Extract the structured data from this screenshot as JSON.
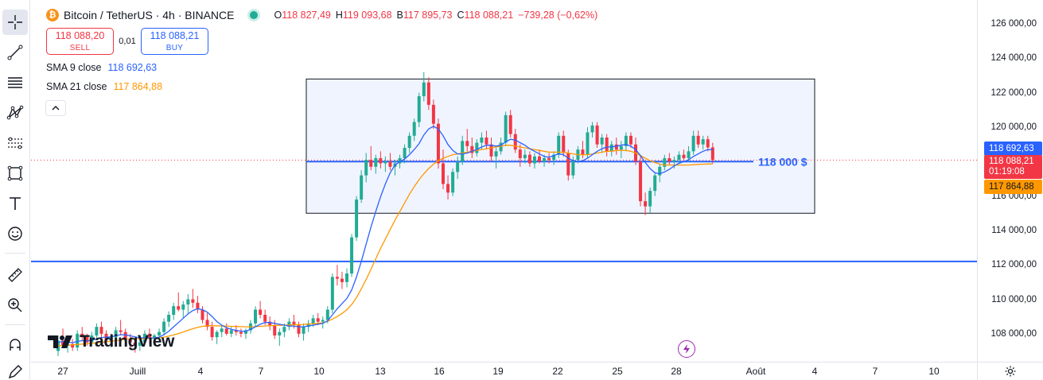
{
  "legend": {
    "symbol": "Bitcoin / TetherUS · 4h · BINANCE",
    "open_label": "O",
    "open": "118 827,49",
    "high_label": "H",
    "high": "119 093,68",
    "low_label": "B",
    "low": "117 895,73",
    "close_label": "C",
    "close": "118 088,21",
    "change": "−739,28 (−0,62%)"
  },
  "trade": {
    "sell_price": "118 088,20",
    "sell_label": "SELL",
    "spread": "0,01",
    "buy_price": "118 088,21",
    "buy_label": "BUY"
  },
  "indicators": {
    "sma9_label": "SMA 9 close",
    "sma9_value": "118 692,63",
    "sma21_label": "SMA 21 close",
    "sma21_value": "117 864,88"
  },
  "price_axis": {
    "ticks": [
      "126 000,00",
      "124 000,00",
      "122 000,00",
      "120 000,00",
      "118 000,00",
      "116 000,00",
      "114 000,00",
      "112 000,00",
      "110 000,00",
      "108 000,00"
    ],
    "sma9_tag": "118 692,63",
    "last_price_tag": "118 088,21",
    "countdown": "01:19:08",
    "sma21_tag": "117 864,88"
  },
  "time_axis": {
    "ticks": [
      "27",
      "Juill",
      "4",
      "7",
      "10",
      "13",
      "16",
      "19",
      "22",
      "25",
      "28",
      "Août",
      "4",
      "7",
      "10"
    ]
  },
  "annotations": {
    "level_label": "118 000 $"
  },
  "branding": {
    "logo_text": "TradingView"
  },
  "colors": {
    "up": "#22ab94",
    "down": "#f23645",
    "sma9": "#2962ff",
    "sma21": "#ff9800",
    "accent": "#2962ff"
  },
  "chart_data": {
    "type": "candlestick",
    "symbol": "BTCUSDT",
    "interval": "4h",
    "ylim": [
      106500,
      127000
    ],
    "candles": [
      [
        107000,
        107900,
        106700,
        107600
      ],
      [
        107600,
        108300,
        107200,
        107300
      ],
      [
        107300,
        107600,
        106900,
        107400
      ],
      [
        107400,
        107700,
        107000,
        107200
      ],
      [
        107200,
        108200,
        107000,
        108000
      ],
      [
        108000,
        108400,
        107600,
        107800
      ],
      [
        107800,
        108000,
        107300,
        107500
      ],
      [
        107500,
        108100,
        107300,
        107900
      ],
      [
        107900,
        108600,
        107700,
        108400
      ],
      [
        108400,
        108700,
        107800,
        108000
      ],
      [
        108000,
        108200,
        107400,
        107600
      ],
      [
        107600,
        108000,
        107200,
        107800
      ],
      [
        107800,
        108400,
        107600,
        108200
      ],
      [
        108200,
        108800,
        107900,
        108100
      ],
      [
        108100,
        108300,
        107500,
        107700
      ],
      [
        107700,
        108000,
        107200,
        107500
      ],
      [
        107500,
        107800,
        106900,
        107300
      ],
      [
        107300,
        107700,
        107000,
        107500
      ],
      [
        107500,
        108200,
        107300,
        108000
      ],
      [
        108000,
        108300,
        107400,
        107700
      ],
      [
        107700,
        108000,
        107300,
        107900
      ],
      [
        107900,
        108300,
        107600,
        108100
      ],
      [
        108100,
        108900,
        107900,
        108700
      ],
      [
        108700,
        109300,
        108400,
        109100
      ],
      [
        109100,
        109800,
        108800,
        109600
      ],
      [
        109600,
        110400,
        109300,
        109400
      ],
      [
        109400,
        109900,
        108900,
        109700
      ],
      [
        109700,
        110300,
        109200,
        110000
      ],
      [
        110000,
        110600,
        109500,
        109800
      ],
      [
        109800,
        110200,
        109200,
        109400
      ],
      [
        109400,
        109600,
        108600,
        108800
      ],
      [
        108800,
        109200,
        108200,
        108400
      ],
      [
        108400,
        108700,
        107600,
        107800
      ],
      [
        107800,
        108200,
        107400,
        108100
      ],
      [
        108100,
        108500,
        107800,
        108300
      ],
      [
        108300,
        108600,
        107900,
        108000
      ],
      [
        108000,
        108400,
        107800,
        108200
      ],
      [
        108200,
        108500,
        107900,
        108100
      ],
      [
        108100,
        108300,
        107800,
        108000
      ],
      [
        108000,
        108300,
        107700,
        108200
      ],
      [
        108200,
        108800,
        108000,
        108600
      ],
      [
        108600,
        109600,
        108400,
        109400
      ],
      [
        109400,
        109900,
        108900,
        109100
      ],
      [
        109100,
        109400,
        108500,
        108700
      ],
      [
        108700,
        109000,
        108200,
        108500
      ],
      [
        108500,
        108800,
        107700,
        107900
      ],
      [
        107900,
        108300,
        107300,
        108100
      ],
      [
        108100,
        108600,
        107800,
        108400
      ],
      [
        108400,
        108900,
        108200,
        108700
      ],
      [
        108700,
        109100,
        108300,
        108500
      ],
      [
        108500,
        108700,
        107800,
        108000
      ],
      [
        108000,
        108600,
        107600,
        108400
      ],
      [
        108400,
        108800,
        108100,
        108600
      ],
      [
        108600,
        109100,
        108400,
        108900
      ],
      [
        108900,
        109200,
        108500,
        108700
      ],
      [
        108700,
        109000,
        108300,
        108800
      ],
      [
        108800,
        109600,
        108600,
        109400
      ],
      [
        109400,
        111500,
        109200,
        111300
      ],
      [
        111300,
        112000,
        110800,
        111200
      ],
      [
        111200,
        111600,
        110600,
        111000
      ],
      [
        111000,
        111800,
        110700,
        111500
      ],
      [
        111500,
        113800,
        111300,
        113600
      ],
      [
        113600,
        116000,
        113400,
        115800
      ],
      [
        115800,
        117500,
        115600,
        117200
      ],
      [
        117200,
        118500,
        116800,
        118100
      ],
      [
        118100,
        118900,
        117500,
        117700
      ],
      [
        117700,
        118400,
        117300,
        118200
      ],
      [
        118200,
        118600,
        117600,
        117900
      ],
      [
        117900,
        118300,
        117400,
        118000
      ],
      [
        118000,
        118500,
        117500,
        117700
      ],
      [
        117700,
        118100,
        117200,
        117900
      ],
      [
        117900,
        118400,
        117600,
        118200
      ],
      [
        118200,
        119000,
        117900,
        118800
      ],
      [
        118800,
        119700,
        118500,
        119500
      ],
      [
        119500,
        120500,
        119200,
        120300
      ],
      [
        120300,
        122000,
        120000,
        121800
      ],
      [
        121800,
        123200,
        121500,
        122600
      ],
      [
        122600,
        122900,
        121000,
        121300
      ],
      [
        121300,
        121600,
        119900,
        120200
      ],
      [
        120200,
        120500,
        117600,
        117900
      ],
      [
        117900,
        118700,
        116400,
        116700
      ],
      [
        116700,
        117200,
        115800,
        116200
      ],
      [
        116200,
        117600,
        116000,
        117400
      ],
      [
        117400,
        118300,
        117000,
        118000
      ],
      [
        118000,
        119500,
        117800,
        119200
      ],
      [
        119200,
        119900,
        118600,
        118900
      ],
      [
        118900,
        119400,
        118200,
        118500
      ],
      [
        118500,
        119300,
        118300,
        119100
      ],
      [
        119100,
        119700,
        118700,
        119400
      ],
      [
        119400,
        119800,
        118700,
        119000
      ],
      [
        119000,
        119400,
        118000,
        118300
      ],
      [
        118300,
        118800,
        117600,
        118600
      ],
      [
        118600,
        119400,
        118400,
        119100
      ],
      [
        119100,
        120900,
        118900,
        120700
      ],
      [
        120700,
        121000,
        119400,
        119600
      ],
      [
        119600,
        119900,
        118500,
        118700
      ],
      [
        118700,
        119000,
        117700,
        118200
      ],
      [
        118200,
        118700,
        117900,
        118400
      ],
      [
        118400,
        118600,
        117700,
        117900
      ],
      [
        117900,
        118500,
        117600,
        118300
      ],
      [
        118300,
        118700,
        117900,
        118000
      ],
      [
        118000,
        118400,
        117700,
        118200
      ],
      [
        118200,
        118500,
        117900,
        118100
      ],
      [
        118100,
        118600,
        117800,
        118400
      ],
      [
        118400,
        119700,
        118200,
        119500
      ],
      [
        119500,
        119800,
        118300,
        118500
      ],
      [
        118500,
        118700,
        116900,
        117200
      ],
      [
        117200,
        118300,
        117000,
        118100
      ],
      [
        118100,
        118900,
        117900,
        118700
      ],
      [
        118700,
        119200,
        118200,
        118400
      ],
      [
        118400,
        120000,
        118200,
        119700
      ],
      [
        119700,
        120300,
        119400,
        120100
      ],
      [
        120100,
        120300,
        118800,
        119000
      ],
      [
        119000,
        119600,
        118500,
        119400
      ],
      [
        119400,
        119600,
        118300,
        118600
      ],
      [
        118600,
        119200,
        118300,
        119000
      ],
      [
        119000,
        119400,
        118400,
        118700
      ],
      [
        118700,
        119200,
        118200,
        118900
      ],
      [
        118900,
        119700,
        118600,
        119500
      ],
      [
        119500,
        119700,
        118800,
        119000
      ],
      [
        119000,
        119400,
        117800,
        118000
      ],
      [
        118000,
        118300,
        115400,
        115700
      ],
      [
        115700,
        116200,
        114900,
        115400
      ],
      [
        115400,
        116500,
        115000,
        116300
      ],
      [
        116300,
        117400,
        116000,
        117200
      ],
      [
        117200,
        117900,
        116800,
        117700
      ],
      [
        117700,
        118400,
        117500,
        118200
      ],
      [
        118200,
        118500,
        117800,
        118000
      ],
      [
        118000,
        118300,
        117600,
        118100
      ],
      [
        118100,
        118600,
        117900,
        118400
      ],
      [
        118400,
        118700,
        118000,
        118200
      ],
      [
        118200,
        118900,
        118000,
        118600
      ],
      [
        118600,
        119800,
        118400,
        119500
      ],
      [
        119500,
        119800,
        118800,
        119000
      ],
      [
        119000,
        119500,
        118700,
        119300
      ],
      [
        119300,
        119500,
        118600,
        118827
      ],
      [
        118827,
        119094,
        117896,
        118088
      ]
    ],
    "sma9": [
      107500,
      107550,
      107520,
      107480,
      107550,
      107600,
      107580,
      107620,
      107700,
      107780,
      107800,
      107820,
      107880,
      107950,
      107930,
      107880,
      107820,
      107760,
      107760,
      107750,
      107760,
      107800,
      107950,
      108150,
      108400,
      108650,
      108900,
      109150,
      109350,
      109450,
      109400,
      109250,
      109000,
      108700,
      108500,
      108350,
      108250,
      108200,
      108150,
      108150,
      108250,
      108400,
      108550,
      108650,
      108650,
      108600,
      108550,
      108500,
      108450,
      108450,
      108400,
      108400,
      108450,
      108500,
      108550,
      108600,
      108750,
      109100,
      109450,
      109750,
      110050,
      110550,
      111300,
      112200,
      113200,
      114200,
      115100,
      115950,
      116700,
      117350,
      117800,
      118000,
      118150,
      118400,
      118700,
      119050,
      119550,
      119900,
      120050,
      119900,
      119500,
      119000,
      118650,
      118450,
      118450,
      118500,
      118600,
      118700,
      118850,
      118950,
      118950,
      118900,
      118950,
      119150,
      119300,
      119250,
      119100,
      118950,
      118750,
      118600,
      118450,
      118300,
      118250,
      118350,
      118450,
      118400,
      118200,
      118050,
      118000,
      118050,
      118200,
      118400,
      118600,
      118750,
      118850,
      118850,
      118900,
      118950,
      119000,
      118900,
      118700,
      118350,
      117950,
      117600,
      117350,
      117300,
      117400,
      117550,
      117750,
      117900,
      118000,
      118100,
      118300,
      118450,
      118600,
      118700,
      118693
    ],
    "sma21": [
      107300,
      107320,
      107340,
      107350,
      107370,
      107400,
      107420,
      107440,
      107470,
      107500,
      107530,
      107560,
      107600,
      107640,
      107670,
      107690,
      107700,
      107710,
      107720,
      107730,
      107740,
      107760,
      107800,
      107860,
      107930,
      108010,
      108100,
      108200,
      108290,
      108370,
      108430,
      108460,
      108470,
      108460,
      108450,
      108440,
      108430,
      108420,
      108410,
      108400,
      108400,
      108410,
      108430,
      108450,
      108470,
      108480,
      108490,
      108500,
      108510,
      108520,
      108530,
      108540,
      108560,
      108580,
      108600,
      108640,
      108720,
      108850,
      109000,
      109180,
      109400,
      109700,
      110100,
      110600,
      111150,
      111750,
      112350,
      112950,
      113500,
      114050,
      114600,
      115100,
      115600,
      116100,
      116550,
      116950,
      117300,
      117600,
      117850,
      118050,
      118200,
      118300,
      118400,
      118450,
      118500,
      118550,
      118600,
      118650,
      118700,
      118750,
      118800,
      118850,
      118900,
      118950,
      118950,
      118900,
      118850,
      118800,
      118750,
      118700,
      118650,
      118600,
      118550,
      118550,
      118550,
      118550,
      118500,
      118450,
      118400,
      118400,
      118400,
      118450,
      118500,
      118550,
      118600,
      118600,
      118650,
      118650,
      118650,
      118600,
      118500,
      118350,
      118200,
      118050,
      117950,
      117850,
      117800,
      117800,
      117800,
      117800,
      117800,
      117800,
      117820,
      117840,
      117850,
      117860,
      117865
    ],
    "horizontal_lines": [
      118000,
      112200
    ],
    "rectangle": {
      "top": 122800,
      "bottom": 115000
    },
    "last_price": 118088.21
  }
}
